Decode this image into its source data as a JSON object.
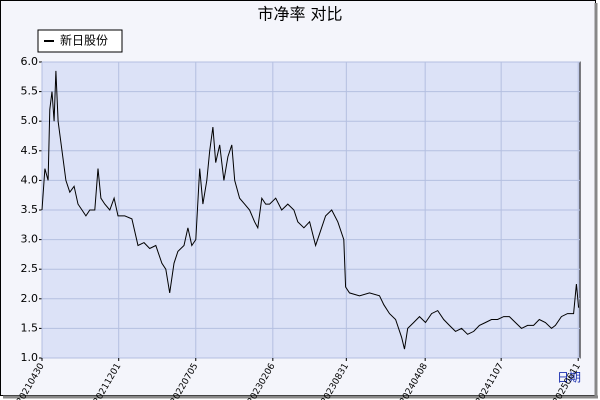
{
  "chart_data": {
    "type": "line",
    "title": "市净率  对比",
    "x_label": "日期",
    "x": [
      "20210430",
      "20210508",
      "20210517",
      "20210522",
      "20210528",
      "20210603",
      "20210608",
      "20210614",
      "20210625",
      "20210706",
      "20210717",
      "20210729",
      "20210809",
      "20210820",
      "20210831",
      "20210911",
      "20210925",
      "20211004",
      "20211012",
      "20211023",
      "20211106",
      "20211118",
      "20211129",
      "20211218",
      "20220107",
      "20220124",
      "20220210",
      "20220226",
      "20220315",
      "20220401",
      "20220412",
      "20220423",
      "20220505",
      "20220516",
      "20220602",
      "20220613",
      "20220624",
      "20220705",
      "20220716",
      "20220725",
      "20220805",
      "20220813",
      "20220822",
      "20220830",
      "20220910",
      "20220922",
      "20221003",
      "20221014",
      "20221022",
      "20221105",
      "20221119",
      "20221203",
      "20221217",
      "20221226",
      "20230106",
      "20230117",
      "20230128",
      "20230214",
      "20230303",
      "20230320",
      "20230406",
      "20230417",
      "20230504",
      "20230520",
      "20230606",
      "20230617",
      "20230704",
      "20230721",
      "20230807",
      "20230824",
      "20230829",
      "20230909",
      "20231007",
      "20231104",
      "20231202",
      "20231214",
      "20231230",
      "20240116",
      "20240202",
      "20240210",
      "20240219",
      "20240307",
      "20240323",
      "20240409",
      "20240426",
      "20240513",
      "20240530",
      "20240615",
      "20240702",
      "20240719",
      "20240805",
      "20240822",
      "20240907",
      "20240924",
      "20241011",
      "20241028",
      "20241114",
      "20241130",
      "20241217",
      "20250103",
      "20250120",
      "20250206",
      "20250222",
      "20250311",
      "20250328",
      "20250408",
      "20250425",
      "20250512",
      "20250529",
      "20250606",
      "20250612"
    ],
    "series": [
      {
        "name": "新日股份",
        "color": "#000000",
        "values": [
          3.5,
          4.2,
          4.0,
          5.2,
          5.5,
          5.0,
          5.85,
          5.0,
          4.5,
          4.0,
          3.8,
          3.9,
          3.6,
          3.5,
          3.4,
          3.5,
          3.5,
          4.2,
          3.7,
          3.6,
          3.5,
          3.7,
          3.4,
          3.4,
          3.35,
          2.9,
          2.95,
          2.85,
          2.9,
          2.6,
          2.5,
          2.1,
          2.6,
          2.8,
          2.9,
          3.2,
          2.9,
          3.0,
          4.2,
          3.6,
          4.0,
          4.5,
          4.9,
          4.3,
          4.6,
          4.0,
          4.4,
          4.6,
          4.0,
          3.7,
          3.6,
          3.5,
          3.3,
          3.2,
          3.7,
          3.6,
          3.6,
          3.7,
          3.5,
          3.6,
          3.5,
          3.3,
          3.2,
          3.3,
          2.9,
          3.1,
          3.4,
          3.5,
          3.3,
          3.0,
          2.2,
          2.1,
          2.05,
          2.1,
          2.05,
          1.9,
          1.75,
          1.65,
          1.35,
          1.15,
          1.5,
          1.6,
          1.7,
          1.6,
          1.75,
          1.8,
          1.65,
          1.55,
          1.45,
          1.5,
          1.4,
          1.45,
          1.55,
          1.6,
          1.65,
          1.65,
          1.7,
          1.7,
          1.6,
          1.5,
          1.55,
          1.55,
          1.65,
          1.6,
          1.5,
          1.55,
          1.7,
          1.75,
          1.75,
          2.25,
          1.85
        ]
      }
    ],
    "xlim": [
      "20210430",
      "20250616"
    ],
    "xticks": [
      "20210430",
      "20211201",
      "20220705",
      "20230206",
      "20230831",
      "20240408",
      "20241107",
      "20250611"
    ],
    "ylim": [
      1,
      6
    ],
    "yticks": [
      {
        "value": 1,
        "label": "1.0"
      },
      1.5,
      {
        "value": 2,
        "label": "2.0"
      },
      2.5,
      {
        "value": 3,
        "label": "3.0"
      },
      3.5,
      {
        "value": 4,
        "label": "4.0"
      },
      4.5,
      {
        "value": 5,
        "label": "5.0"
      },
      5.5,
      {
        "value": 6,
        "label": "6.0"
      }
    ],
    "grid": true,
    "legend": "top-left"
  }
}
